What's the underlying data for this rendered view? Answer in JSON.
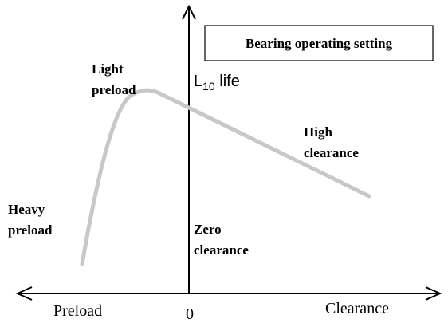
{
  "title": "Bearing operating setting",
  "y_axis_label": {
    "main": "L",
    "subscript": "10",
    "suffix": " life"
  },
  "x_axis": {
    "left": "Preload",
    "origin": "0",
    "right": "Clearance"
  },
  "annotations": [
    {
      "lines": [
        "Light",
        "preload"
      ]
    },
    {
      "lines": [
        "Heavy",
        "preload"
      ]
    },
    {
      "lines": [
        "High",
        "clearance"
      ]
    },
    {
      "lines": [
        "Zero",
        "clearance"
      ]
    }
  ]
}
